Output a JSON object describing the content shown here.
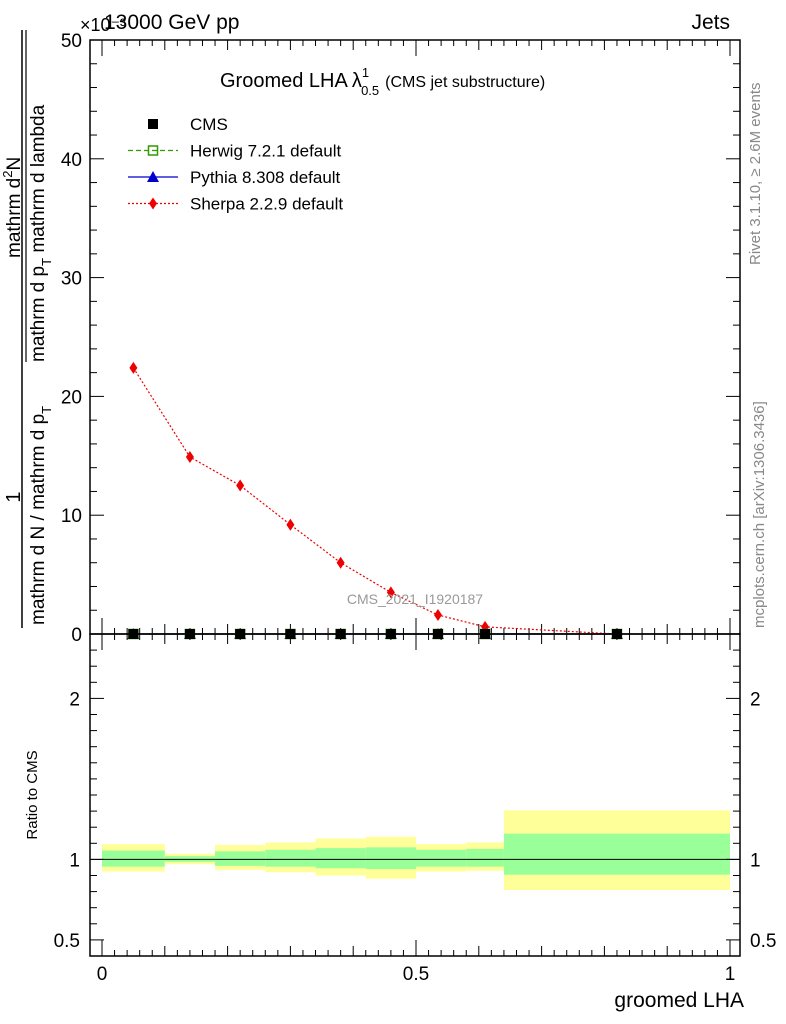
{
  "header": {
    "energy_label": "13000 GeV pp",
    "scale_label": "×10⁻³",
    "category_label": "Jets"
  },
  "side_labels": {
    "rivet": "Rivet 3.1.10, ≥ 2.6M events",
    "mcplots": "mcplots.cern.ch [arXiv:1306.3436]"
  },
  "chart_data": {
    "type": "line",
    "title": "Groomed LHA",
    "title_symbol": "λ",
    "title_sup": "1",
    "title_sub": "0.5",
    "subtitle": "(CMS jet substructure)",
    "watermark": "CMS_2021_I1920187",
    "ylabel_numerator": "1",
    "ylabel_denominator": "mathrm d N / mathrm d p",
    "ylabel_denominator_sub": "T",
    "ylabel_frac_num": "mathrm d",
    "ylabel_frac_num_sup": "2",
    "ylabel_frac_num_tail": "N",
    "ylabel_frac_den": "mathrm d p",
    "ylabel_frac_den_sub": "T",
    "ylabel_frac_den_tail": " mathrm d lambda",
    "xlabel": "groomed LHA",
    "ratio_ylabel": "Ratio to CMS",
    "xlim": [
      0,
      1
    ],
    "ylim": [
      0,
      50
    ],
    "ratio_ylim": [
      0.4,
      2.4
    ],
    "x_ticks": [
      {
        "value": 0,
        "label": "0"
      },
      {
        "value": 0.5,
        "label": "0.5"
      },
      {
        "value": 1,
        "label": "1"
      }
    ],
    "y_ticks": [
      {
        "value": 0,
        "label": "0"
      },
      {
        "value": 10,
        "label": "10"
      },
      {
        "value": 20,
        "label": "20"
      },
      {
        "value": 30,
        "label": "30"
      },
      {
        "value": 40,
        "label": "40"
      },
      {
        "value": 50,
        "label": "50"
      }
    ],
    "ratio_ticks": [
      {
        "value": 0.5,
        "label": "0.5"
      },
      {
        "value": 1,
        "label": "1"
      },
      {
        "value": 2,
        "label": "2"
      }
    ],
    "bin_edges": [
      0,
      0.1,
      0.18,
      0.26,
      0.34,
      0.42,
      0.5,
      0.58,
      0.64,
      1.0
    ],
    "x": [
      0.05,
      0.14,
      0.22,
      0.3,
      0.38,
      0.46,
      0.535,
      0.61,
      0.82
    ],
    "legend": {
      "placement": "top-left",
      "entries": [
        {
          "name": "CMS",
          "color": "#000000",
          "marker": "square-filled",
          "line": "none"
        },
        {
          "name": "Herwig 7.2.1 default",
          "color": "#339900",
          "marker": "square-open",
          "line": "dashed"
        },
        {
          "name": "Pythia 8.308 default",
          "color": "#0000cc",
          "marker": "triangle-filled",
          "line": "solid"
        },
        {
          "name": "Sherpa 2.2.9 default",
          "color": "#ee0000",
          "marker": "diamond-filled",
          "line": "dotted"
        }
      ]
    },
    "series": [
      {
        "name": "CMS",
        "values": [
          0,
          0,
          0,
          0,
          0,
          0,
          0,
          0,
          0
        ]
      },
      {
        "name": "Herwig 7.2.1 default",
        "values": [
          0,
          0,
          0,
          0,
          0,
          0,
          0,
          0,
          0
        ]
      },
      {
        "name": "Pythia 8.308 default",
        "values": [
          0,
          0,
          0,
          0,
          0,
          0,
          0,
          0,
          0
        ]
      },
      {
        "name": "Sherpa 2.2.9 default",
        "values": [
          22.4,
          14.9,
          12.5,
          9.2,
          6.0,
          3.5,
          1.6,
          0.6,
          0.0
        ]
      }
    ],
    "ratio_bands": {
      "inner_lo": [
        0.955,
        0.985,
        0.96,
        0.955,
        0.945,
        0.94,
        0.955,
        0.955,
        0.905
      ],
      "inner_hi": [
        1.055,
        1.02,
        1.05,
        1.06,
        1.07,
        1.075,
        1.06,
        1.065,
        1.16
      ],
      "outer_lo": [
        0.925,
        0.97,
        0.935,
        0.92,
        0.9,
        0.88,
        0.925,
        0.93,
        0.81
      ],
      "outer_hi": [
        1.095,
        1.035,
        1.09,
        1.105,
        1.13,
        1.14,
        1.095,
        1.105,
        1.305
      ]
    },
    "colors": {
      "inner_band": "#99ff99",
      "outer_band": "#ffff99"
    }
  }
}
